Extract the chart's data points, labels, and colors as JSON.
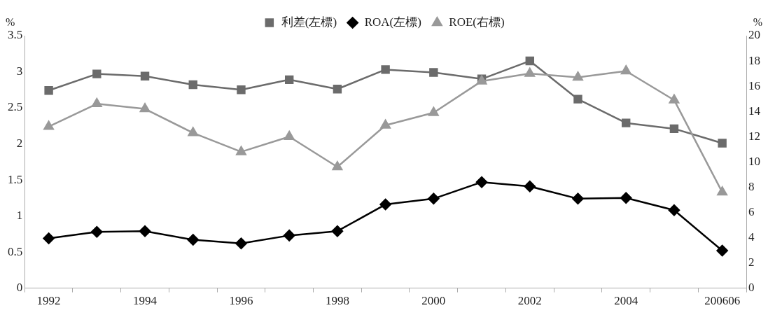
{
  "chart_data": {
    "type": "line",
    "categories": [
      "1992",
      null,
      "1994",
      null,
      "1996",
      null,
      "1998",
      null,
      "2000",
      null,
      "2002",
      null,
      "2004",
      null,
      "200606"
    ],
    "series": [
      {
        "name": "利差(左標)",
        "color": "#6b6b6b",
        "marker": "square",
        "values": [
          2.74,
          2.97,
          2.94,
          2.82,
          2.75,
          2.89,
          2.76,
          3.03,
          2.99,
          2.9,
          3.15,
          2.62,
          2.29,
          2.21,
          2.01
        ]
      },
      {
        "name": "ROA(左標)",
        "color": "#000000",
        "marker": "diamond",
        "values": [
          0.69,
          0.78,
          0.79,
          0.67,
          0.62,
          0.73,
          0.79,
          1.16,
          1.24,
          1.47,
          1.41,
          1.24,
          1.25,
          1.08,
          0.52
        ]
      },
      {
        "name": "ROE(右標)",
        "color": "#999999",
        "marker": "triangle",
        "axis": "y2",
        "values": [
          12.8,
          14.6,
          14.2,
          12.3,
          10.8,
          12.0,
          9.6,
          12.9,
          13.9,
          16.4,
          17.0,
          16.7,
          17.2,
          14.9,
          7.6
        ]
      }
    ],
    "ylabel": "%",
    "y2label": "%",
    "ylim": [
      0,
      3.5
    ],
    "yticks": [
      0,
      0.5,
      1,
      1.5,
      2,
      2.5,
      3,
      3.5
    ],
    "y2lim": [
      0,
      20
    ],
    "y2ticks": [
      0,
      2,
      4,
      6,
      8,
      10,
      12,
      14,
      16,
      18,
      20
    ],
    "legend": "top",
    "grid": false,
    "line_style": "solid"
  }
}
